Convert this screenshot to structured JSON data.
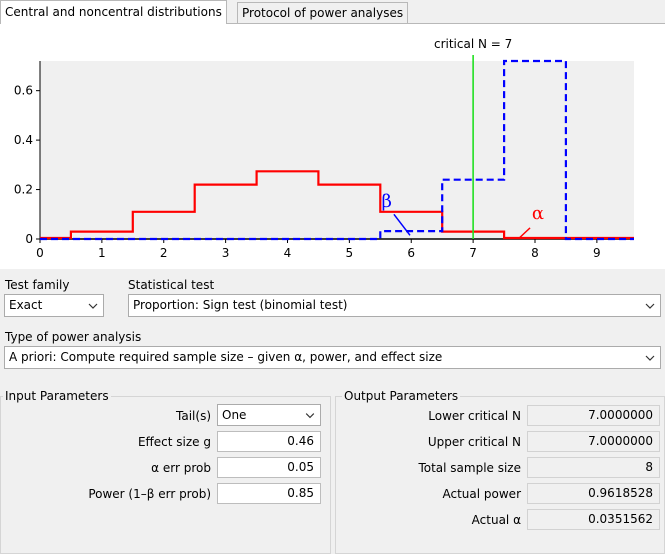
{
  "tabs": [
    {
      "label": "Central and noncentral distributions",
      "active": true
    },
    {
      "label": "Protocol of power analyses",
      "active": false
    }
  ],
  "chart_data": {
    "type": "line",
    "critical_label": "critical N =  7",
    "critical_x": 7,
    "xlim": [
      0,
      9.6
    ],
    "ylim": [
      0,
      0.72
    ],
    "xticks": [
      "0",
      "1",
      "2",
      "3",
      "4",
      "5",
      "6",
      "7",
      "8",
      "9"
    ],
    "yticks": [
      {
        "v": 0,
        "t": "0"
      },
      {
        "v": 0.2,
        "t": "0.2"
      },
      {
        "v": 0.4,
        "t": "0.4"
      },
      {
        "v": 0.6,
        "t": "0.6"
      }
    ],
    "series": [
      {
        "name": "α",
        "color": "#ff0000",
        "dashed": false,
        "x": [
          0,
          0.5,
          0.5,
          1.5,
          1.5,
          2.5,
          2.5,
          3.5,
          3.5,
          4.5,
          4.5,
          5.5,
          5.5,
          6.5,
          6.5,
          7.5,
          7.5,
          9.6
        ],
        "y": [
          0.004,
          0.004,
          0.03,
          0.03,
          0.11,
          0.11,
          0.22,
          0.22,
          0.274,
          0.274,
          0.22,
          0.22,
          0.11,
          0.11,
          0.03,
          0.03,
          0.004,
          0.004
        ]
      },
      {
        "name": "β",
        "color": "#0000ff",
        "dashed": true,
        "x": [
          0,
          5.5,
          5.5,
          6.5,
          6.5,
          7.5,
          7.5,
          8.5,
          8.5,
          9.6
        ],
        "y": [
          0,
          0,
          0.032,
          0.032,
          0.24,
          0.24,
          0.72,
          0.72,
          0,
          0
        ]
      }
    ]
  },
  "test_family": {
    "label": "Test family",
    "value": "Exact"
  },
  "statistical_test": {
    "label": "Statistical test",
    "value": "Proportion: Sign test (binomial test)"
  },
  "power_analysis": {
    "label": "Type of power analysis",
    "value": "A priori: Compute required sample size – given α, power, and effect size"
  },
  "input": {
    "title": "Input Parameters",
    "tails_label": "Tail(s)",
    "tails_value": "One",
    "effect_label": "Effect size g",
    "effect_value": "0.46",
    "alpha_label": "α err prob",
    "alpha_value": "0.05",
    "power_label": "Power (1–β err prob)",
    "power_value": "0.85"
  },
  "output": {
    "title": "Output Parameters",
    "lower_label": "Lower critical N",
    "lower_value": "7.0000000",
    "upper_label": "Upper critical N",
    "upper_value": "7.0000000",
    "total_label": "Total sample size",
    "total_value": "8",
    "power_label": "Actual power",
    "power_value": "0.9618528",
    "alpha_label": "Actual α",
    "alpha_value": "0.0351562"
  }
}
